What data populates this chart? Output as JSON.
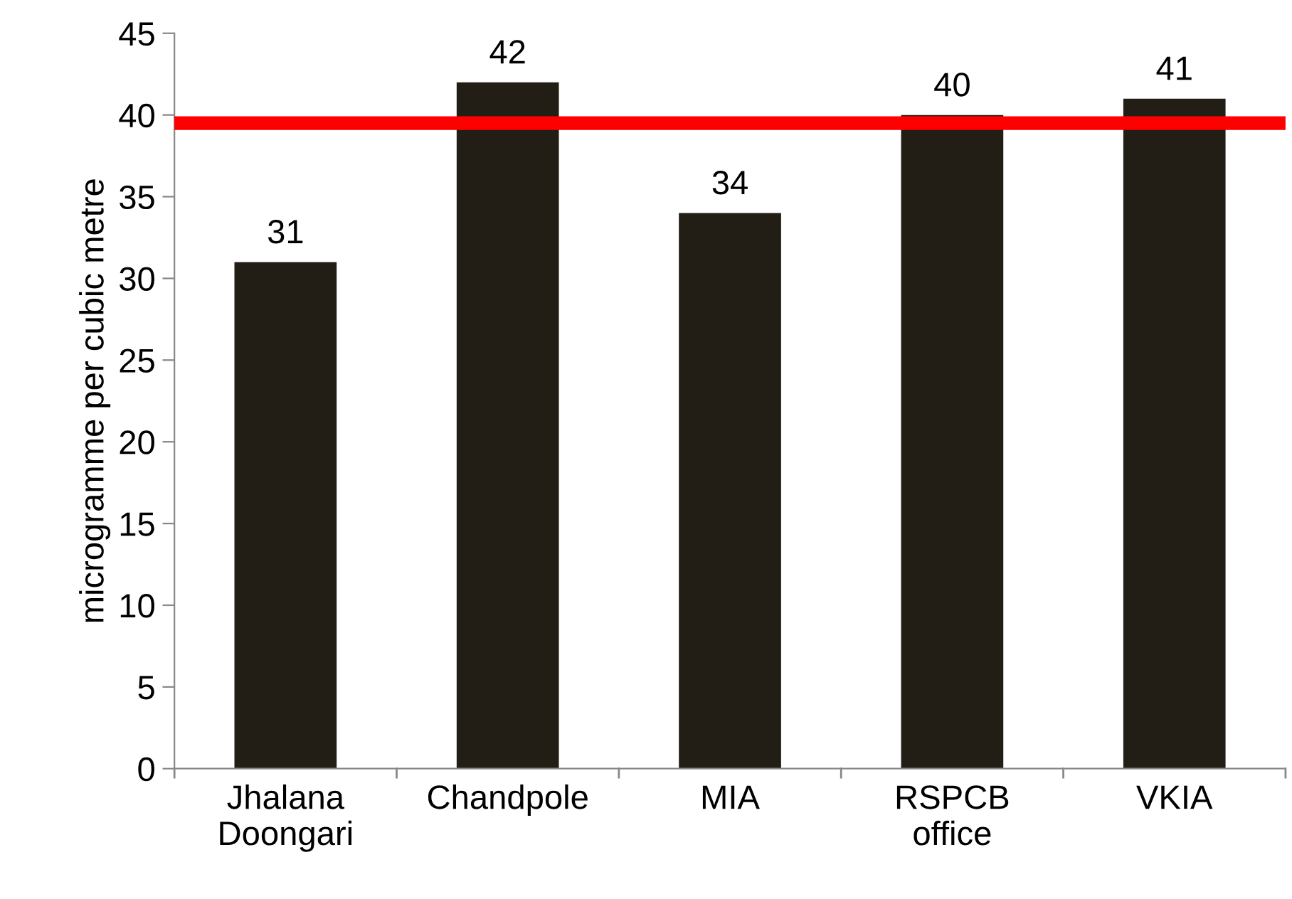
{
  "chart_data": {
    "type": "bar",
    "ylabel": "microgramme per cubic metre",
    "categories": [
      "Jhalana\nDoongari",
      "Chandpole",
      "MIA",
      "RSPCB\noffice",
      "VKIA"
    ],
    "values": [
      31,
      42,
      34,
      40,
      41
    ],
    "color": "#221e16",
    "ylim": [
      0,
      45
    ],
    "yticks": [
      0,
      5,
      10,
      15,
      20,
      25,
      30,
      35,
      40,
      45
    ],
    "data_labels": true,
    "grid": false,
    "ref_lines": [
      {
        "axis": "y",
        "value": 39.5,
        "color": "#ff0000",
        "line_style": "solid"
      }
    ]
  }
}
